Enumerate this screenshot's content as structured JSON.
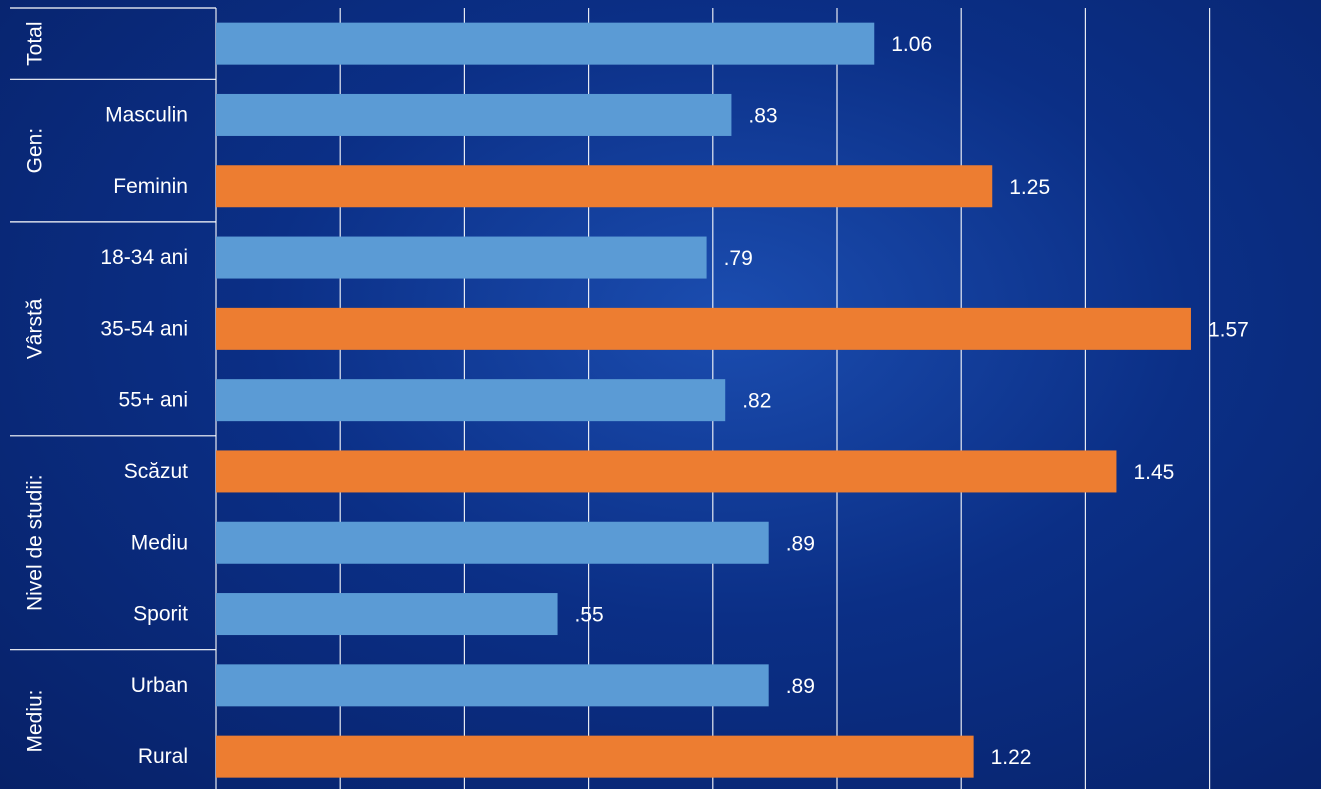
{
  "chart_data": {
    "type": "bar",
    "orientation": "horizontal",
    "xlim": [
      0,
      1.6
    ],
    "grid": true,
    "colors": {
      "normal": "#5b9bd5",
      "highlight": "#ed7d31"
    },
    "groups": [
      {
        "name": "Total",
        "items": [
          {
            "label": "",
            "value": 1.06,
            "value_label": "1.06",
            "highlight": false
          }
        ]
      },
      {
        "name": "Gen:",
        "items": [
          {
            "label": "Masculin",
            "value": 0.83,
            "value_label": ".83",
            "highlight": false
          },
          {
            "label": "Feminin",
            "value": 1.25,
            "value_label": "1.25",
            "highlight": true
          }
        ]
      },
      {
        "name": "Vârstă",
        "items": [
          {
            "label": "18-34 ani",
            "value": 0.79,
            "value_label": ".79",
            "highlight": false
          },
          {
            "label": "35-54 ani",
            "value": 1.57,
            "value_label": "1.57",
            "highlight": true
          },
          {
            "label": "55+ ani",
            "value": 0.82,
            "value_label": ".82",
            "highlight": false
          }
        ]
      },
      {
        "name": "Nivel de studii:",
        "items": [
          {
            "label": "Scăzut",
            "value": 1.45,
            "value_label": "1.45",
            "highlight": true
          },
          {
            "label": "Mediu",
            "value": 0.89,
            "value_label": ".89",
            "highlight": false
          },
          {
            "label": "Sporit",
            "value": 0.55,
            "value_label": ".55",
            "highlight": false
          }
        ]
      },
      {
        "name": "Mediu:",
        "items": [
          {
            "label": "Urban",
            "value": 0.89,
            "value_label": ".89",
            "highlight": false
          },
          {
            "label": "Rural",
            "value": 1.22,
            "value_label": "1.22",
            "highlight": true
          }
        ]
      }
    ]
  }
}
